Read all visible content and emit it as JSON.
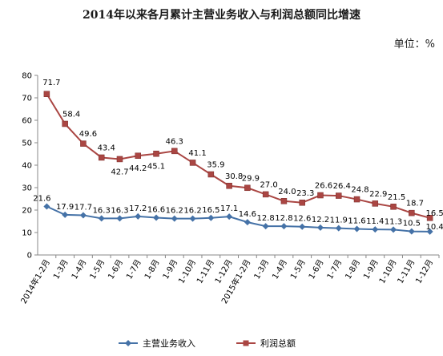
{
  "chart_data": {
    "type": "line",
    "title": "2014年以来各月累计主营业务收入与利润总额同比增速",
    "unit_label": "单位：%",
    "ylim": [
      0,
      80
    ],
    "y_ticks": [
      "0",
      "10",
      "20",
      "30",
      "40",
      "50",
      "60",
      "70",
      "80"
    ],
    "categories": [
      "2014年1-2月",
      "1-3月",
      "1-4月",
      "1-5月",
      "1-6月",
      "1-7月",
      "1-8月",
      "1-9月",
      "1-10月",
      "1-11月",
      "1-12月",
      "2015年1-2月",
      "1-3月",
      "1-4月",
      "1-5月",
      "1-6月",
      "1-7月",
      "1-8月",
      "1-9月",
      "1-10月",
      "1-11月",
      "1-12月"
    ],
    "grid": false,
    "legend_position": "bottom",
    "series": [
      {
        "name": "主营业务收入",
        "color": "#4572A7",
        "marker": "diamond",
        "values": [
          21.6,
          17.9,
          17.7,
          16.3,
          16.3,
          17.2,
          16.6,
          16.2,
          16.2,
          16.5,
          17.1,
          14.6,
          12.8,
          12.8,
          12.6,
          12.2,
          11.9,
          11.6,
          11.4,
          11.3,
          10.5,
          10.4
        ],
        "labels": [
          "21.6",
          "17.9",
          "17.7",
          "16.3",
          "16.3",
          "17.2",
          "16.6",
          "16.2",
          "16.2",
          "16.5",
          "17.1",
          "14.6",
          "12.8",
          "12.8",
          "12.6",
          "12.2",
          "11.9",
          "11.6",
          "11.4",
          "11.3",
          "10.5",
          "10.4"
        ]
      },
      {
        "name": "利润总额",
        "color": "#AA4643",
        "marker": "square",
        "values": [
          71.7,
          58.4,
          49.6,
          43.4,
          42.7,
          44.2,
          45.1,
          46.3,
          41.1,
          35.9,
          30.8,
          29.9,
          27.0,
          24.0,
          23.3,
          26.6,
          26.4,
          24.8,
          22.9,
          21.5,
          18.7,
          16.5
        ],
        "labels": [
          "71.7",
          "58.4",
          "49.6",
          "43.4",
          "42.7",
          "44.2",
          "45.1",
          "46.3",
          "41.1",
          "35.9",
          "30.8",
          "29.9",
          "27.0",
          "24.0",
          "23.3",
          "26.6",
          "26.4",
          "24.8",
          "22.9",
          "21.5",
          "18.7",
          "16.5"
        ]
      }
    ]
  }
}
